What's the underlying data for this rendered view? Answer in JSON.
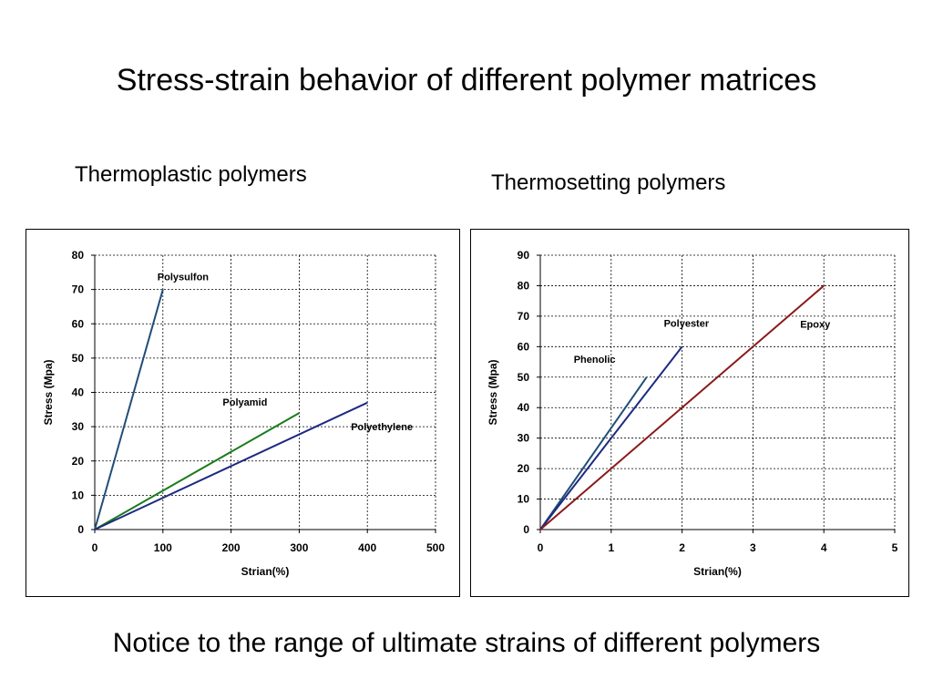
{
  "slide": {
    "title": "Stress-strain behavior of different polymer matrices",
    "footer": "Notice to the range of ultimate strains of different polymers"
  },
  "chart_data": [
    {
      "type": "line",
      "title": "Thermoplastic polymers",
      "xlabel": "Strian(%)",
      "ylabel": "Stress (Mpa)",
      "xlim": [
        0,
        500
      ],
      "ylim": [
        0,
        80
      ],
      "xticks": [
        0,
        100,
        200,
        300,
        400,
        500
      ],
      "yticks": [
        0,
        10,
        20,
        30,
        40,
        50,
        60,
        70,
        80
      ],
      "grid": true,
      "series": [
        {
          "name": "Polysulfon",
          "color": "#1f4e79",
          "points": [
            [
              0,
              0
            ],
            [
              100,
              70
            ]
          ]
        },
        {
          "name": "Polyamid",
          "color": "#1a7a1a",
          "points": [
            [
              0,
              0
            ],
            [
              300,
              34
            ]
          ]
        },
        {
          "name": "Polyethylene",
          "color": "#1c2a80",
          "points": [
            [
              0,
              0
            ],
            [
              400,
              37
            ]
          ]
        }
      ]
    },
    {
      "type": "line",
      "title": "Thermosetting polymers",
      "xlabel": "Strian(%)",
      "ylabel": "Stress (Mpa)",
      "xlim": [
        0,
        5
      ],
      "ylim": [
        0,
        90
      ],
      "xticks": [
        0,
        1,
        2,
        3,
        4,
        5
      ],
      "yticks": [
        0,
        10,
        20,
        30,
        40,
        50,
        60,
        70,
        80,
        90
      ],
      "grid": true,
      "series": [
        {
          "name": "Phenolic",
          "color": "#1f4e79",
          "points": [
            [
              0,
              0
            ],
            [
              1.5,
              50
            ]
          ]
        },
        {
          "name": "Polyester",
          "color": "#1c2a80",
          "points": [
            [
              0,
              0
            ],
            [
              2,
              60
            ]
          ]
        },
        {
          "name": "Epoxy",
          "color": "#8b1a1a",
          "points": [
            [
              0,
              0
            ],
            [
              4,
              80
            ]
          ]
        }
      ]
    }
  ]
}
